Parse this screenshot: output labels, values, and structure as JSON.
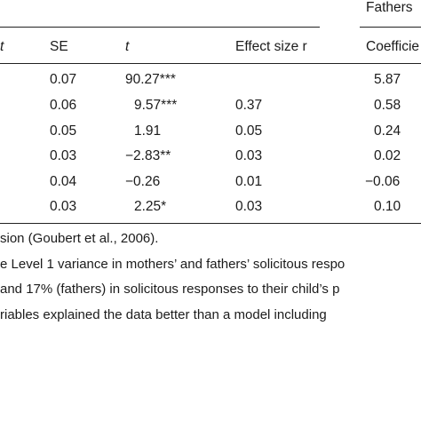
{
  "header": {
    "group_label": "Fathers",
    "col_b_fragment": "t",
    "col_se": "SE",
    "col_t": "t",
    "col_effect": "Effect size r",
    "col_coef": "Coefficie"
  },
  "rows": [
    {
      "se": "0.07",
      "t": "90.27***",
      "r": "",
      "coef": "5.87"
    },
    {
      "se": "0.06",
      "t": "9.57***",
      "r": "0.37",
      "coef": "0.58"
    },
    {
      "se": "0.05",
      "t": "1.91",
      "r": "0.05",
      "coef": "0.24"
    },
    {
      "se": "0.03",
      "t": "−2.83**",
      "r": "0.03",
      "coef": "0.02"
    },
    {
      "se": "0.04",
      "t": "−0.26",
      "r": "0.01",
      "coef": "−0.06"
    },
    {
      "se": "0.03",
      "t": "2.25*",
      "r": "0.03",
      "coef": "0.10"
    }
  ],
  "notes": [
    "sion (Goubert et al., 2006).",
    "e Level 1 variance in mothers’ and fathers’ solicitous respo",
    " and 17% (fathers) in solicitous responses to their child’s p",
    "riables explained the data better than a model including"
  ]
}
